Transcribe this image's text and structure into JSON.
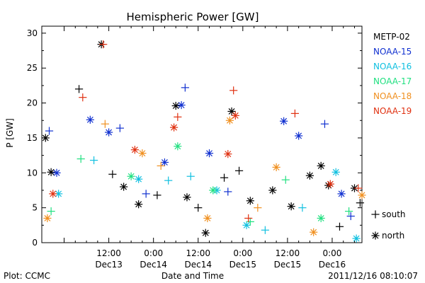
{
  "chart_data": {
    "type": "scatter",
    "title": "Hemispheric Power [GW]",
    "ylabel": "P [GW]",
    "xlabel": "Date and Time",
    "ylim": [
      0,
      31
    ],
    "yticks": [
      0,
      5,
      10,
      15,
      20,
      25,
      30
    ],
    "xlim": [
      "2011-12-12 18:00",
      "2011-12-16 08:00"
    ],
    "xticks": [
      {
        "at": "2011-12-13 12:00",
        "time": "12:00",
        "day": "Dec13"
      },
      {
        "at": "2011-12-14 00:00",
        "time": "0:00",
        "day": "Dec14"
      },
      {
        "at": "2011-12-14 12:00",
        "time": "12:00",
        "day": "Dec14"
      },
      {
        "at": "2011-12-15 00:00",
        "time": "0:00",
        "day": "Dec15"
      },
      {
        "at": "2011-12-15 12:00",
        "time": "12:00",
        "day": "Dec15"
      },
      {
        "at": "2011-12-16 00:00",
        "time": "0:00",
        "day": "Dec16"
      }
    ],
    "grid": false,
    "legend_position": "right",
    "series": [
      {
        "name": "METP-02",
        "color": "#000000",
        "points": [
          {
            "x": "2011-12-12 19:00",
            "y": 15.0,
            "m": "star"
          },
          {
            "x": "2011-12-12 20:30",
            "y": 10.1,
            "m": "star"
          },
          {
            "x": "2011-12-13 04:00",
            "y": 22.0,
            "m": "plus"
          },
          {
            "x": "2011-12-13 10:00",
            "y": 28.4,
            "m": "star"
          },
          {
            "x": "2011-12-13 13:00",
            "y": 9.8,
            "m": "plus"
          },
          {
            "x": "2011-12-13 16:00",
            "y": 8.0,
            "m": "star"
          },
          {
            "x": "2011-12-13 20:00",
            "y": 5.5,
            "m": "star"
          },
          {
            "x": "2011-12-14 01:00",
            "y": 6.8,
            "m": "plus"
          },
          {
            "x": "2011-12-14 06:00",
            "y": 19.6,
            "m": "star"
          },
          {
            "x": "2011-12-14 09:00",
            "y": 6.5,
            "m": "star"
          },
          {
            "x": "2011-12-14 12:00",
            "y": 5.0,
            "m": "plus"
          },
          {
            "x": "2011-12-14 14:00",
            "y": 1.4,
            "m": "star"
          },
          {
            "x": "2011-12-14 19:00",
            "y": 9.3,
            "m": "plus"
          },
          {
            "x": "2011-12-14 21:00",
            "y": 18.8,
            "m": "star"
          },
          {
            "x": "2011-12-14 23:00",
            "y": 10.3,
            "m": "plus"
          },
          {
            "x": "2011-12-15 02:00",
            "y": 6.0,
            "m": "star"
          },
          {
            "x": "2011-12-15 08:00",
            "y": 7.5,
            "m": "star"
          },
          {
            "x": "2011-12-15 13:00",
            "y": 5.2,
            "m": "star"
          },
          {
            "x": "2011-12-15 18:00",
            "y": 9.6,
            "m": "star"
          },
          {
            "x": "2011-12-15 21:00",
            "y": 11.0,
            "m": "star"
          },
          {
            "x": "2011-12-15 23:00",
            "y": 8.2,
            "m": "star"
          },
          {
            "x": "2011-12-16 02:00",
            "y": 2.3,
            "m": "plus"
          },
          {
            "x": "2011-12-16 06:00",
            "y": 7.8,
            "m": "star"
          },
          {
            "x": "2011-12-16 07:30",
            "y": 5.7,
            "m": "plus"
          }
        ]
      },
      {
        "name": "NOAA-15",
        "color": "#1030d0",
        "points": [
          {
            "x": "2011-12-12 20:00",
            "y": 16.0,
            "m": "plus"
          },
          {
            "x": "2011-12-12 22:00",
            "y": 10.0,
            "m": "star"
          },
          {
            "x": "2011-12-13 07:00",
            "y": 17.6,
            "m": "star"
          },
          {
            "x": "2011-12-13 12:00",
            "y": 15.8,
            "m": "star"
          },
          {
            "x": "2011-12-13 15:00",
            "y": 16.4,
            "m": "plus"
          },
          {
            "x": "2011-12-13 22:00",
            "y": 7.0,
            "m": "plus"
          },
          {
            "x": "2011-12-14 03:00",
            "y": 11.5,
            "m": "star"
          },
          {
            "x": "2011-12-14 07:30",
            "y": 19.7,
            "m": "star"
          },
          {
            "x": "2011-12-14 08:30",
            "y": 22.2,
            "m": "plus"
          },
          {
            "x": "2011-12-14 15:00",
            "y": 12.8,
            "m": "star"
          },
          {
            "x": "2011-12-14 20:00",
            "y": 7.3,
            "m": "plus"
          },
          {
            "x": "2011-12-15 11:00",
            "y": 17.4,
            "m": "star"
          },
          {
            "x": "2011-12-15 15:00",
            "y": 15.3,
            "m": "star"
          },
          {
            "x": "2011-12-15 22:00",
            "y": 17.0,
            "m": "plus"
          },
          {
            "x": "2011-12-16 02:30",
            "y": 7.0,
            "m": "star"
          },
          {
            "x": "2011-12-16 05:00",
            "y": 3.8,
            "m": "plus"
          }
        ]
      },
      {
        "name": "NOAA-16",
        "color": "#10c0e0",
        "points": [
          {
            "x": "2011-12-12 22:30",
            "y": 7.0,
            "m": "star"
          },
          {
            "x": "2011-12-13 08:00",
            "y": 11.8,
            "m": "plus"
          },
          {
            "x": "2011-12-13 20:00",
            "y": 9.1,
            "m": "star"
          },
          {
            "x": "2011-12-14 04:00",
            "y": 8.9,
            "m": "plus"
          },
          {
            "x": "2011-12-14 10:00",
            "y": 9.5,
            "m": "plus"
          },
          {
            "x": "2011-12-14 17:00",
            "y": 7.5,
            "m": "star"
          },
          {
            "x": "2011-12-15 01:00",
            "y": 2.5,
            "m": "star"
          },
          {
            "x": "2011-12-15 06:00",
            "y": 1.8,
            "m": "plus"
          },
          {
            "x": "2011-12-15 16:00",
            "y": 5.0,
            "m": "plus"
          },
          {
            "x": "2011-12-16 01:00",
            "y": 10.1,
            "m": "star"
          },
          {
            "x": "2011-12-16 06:30",
            "y": 0.6,
            "m": "star"
          }
        ]
      },
      {
        "name": "NOAA-17",
        "color": "#20e080",
        "points": [
          {
            "x": "2011-12-12 20:30",
            "y": 4.5,
            "m": "plus"
          },
          {
            "x": "2011-12-13 04:30",
            "y": 12.0,
            "m": "plus"
          },
          {
            "x": "2011-12-13 18:00",
            "y": 9.5,
            "m": "star"
          },
          {
            "x": "2011-12-14 06:30",
            "y": 13.8,
            "m": "star"
          },
          {
            "x": "2011-12-14 16:00",
            "y": 7.5,
            "m": "star"
          },
          {
            "x": "2011-12-15 02:00",
            "y": 3.0,
            "m": "plus"
          },
          {
            "x": "2011-12-15 11:30",
            "y": 9.0,
            "m": "plus"
          },
          {
            "x": "2011-12-15 21:00",
            "y": 3.5,
            "m": "star"
          },
          {
            "x": "2011-12-16 04:30",
            "y": 4.5,
            "m": "plus"
          }
        ]
      },
      {
        "name": "NOAA-18",
        "color": "#f09020",
        "points": [
          {
            "x": "2011-12-12 19:30",
            "y": 3.5,
            "m": "star"
          },
          {
            "x": "2011-12-13 11:00",
            "y": 17.0,
            "m": "plus"
          },
          {
            "x": "2011-12-13 21:00",
            "y": 12.8,
            "m": "star"
          },
          {
            "x": "2011-12-14 02:00",
            "y": 11.0,
            "m": "plus"
          },
          {
            "x": "2011-12-14 14:30",
            "y": 3.5,
            "m": "star"
          },
          {
            "x": "2011-12-14 20:30",
            "y": 17.5,
            "m": "star"
          },
          {
            "x": "2011-12-15 04:00",
            "y": 5.0,
            "m": "plus"
          },
          {
            "x": "2011-12-15 09:00",
            "y": 10.8,
            "m": "star"
          },
          {
            "x": "2011-12-15 19:00",
            "y": 1.5,
            "m": "star"
          },
          {
            "x": "2011-12-16 08:00",
            "y": 6.8,
            "m": "star"
          }
        ]
      },
      {
        "name": "NOAA-19",
        "color": "#e03010",
        "points": [
          {
            "x": "2011-12-12 21:00",
            "y": 7.0,
            "m": "star"
          },
          {
            "x": "2011-12-13 05:00",
            "y": 20.8,
            "m": "plus"
          },
          {
            "x": "2011-12-13 10:30",
            "y": 28.4,
            "m": "plus"
          },
          {
            "x": "2011-12-13 19:00",
            "y": 13.3,
            "m": "star"
          },
          {
            "x": "2011-12-14 05:30",
            "y": 16.5,
            "m": "star"
          },
          {
            "x": "2011-12-14 06:30",
            "y": 18.0,
            "m": "plus"
          },
          {
            "x": "2011-12-14 20:00",
            "y": 12.7,
            "m": "star"
          },
          {
            "x": "2011-12-14 21:30",
            "y": 21.8,
            "m": "plus"
          },
          {
            "x": "2011-12-14 22:00",
            "y": 18.2,
            "m": "star"
          },
          {
            "x": "2011-12-15 01:30",
            "y": 3.5,
            "m": "plus"
          },
          {
            "x": "2011-12-15 14:00",
            "y": 18.5,
            "m": "plus"
          },
          {
            "x": "2011-12-15 23:30",
            "y": 8.4,
            "m": "star"
          },
          {
            "x": "2011-12-16 07:00",
            "y": 7.8,
            "m": "plus"
          }
        ]
      }
    ]
  },
  "legend_marks": [
    {
      "symbol": "+",
      "label": "south"
    },
    {
      "symbol": "*",
      "label": "north"
    }
  ],
  "footer": {
    "left": "Plot: CCMC",
    "right": "2011/12/16 08:10:07"
  }
}
